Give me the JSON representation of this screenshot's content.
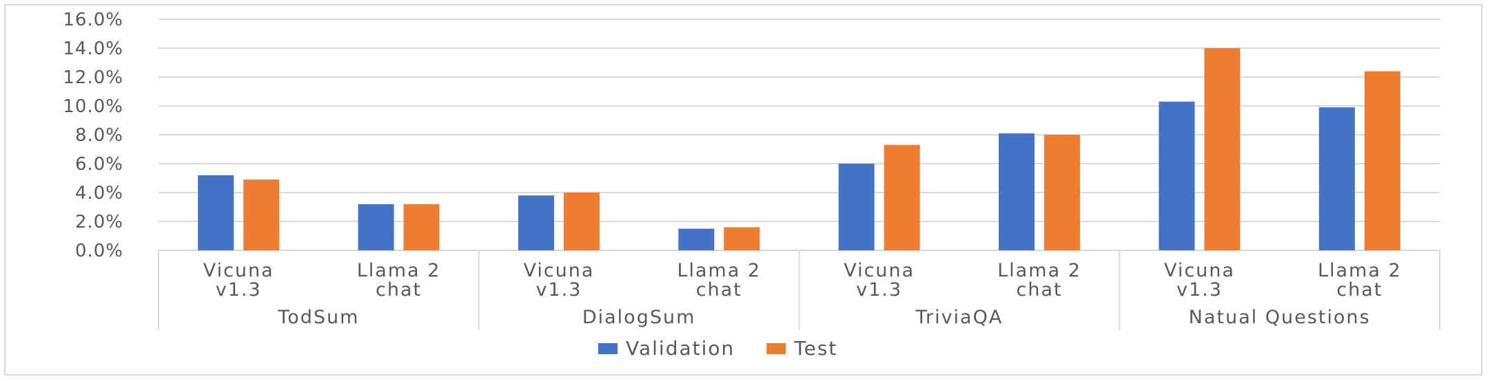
{
  "chart_data": {
    "type": "bar",
    "groups": [
      {
        "name": "TodSum",
        "categories": [
          "Vicuna v1.3",
          "Llama 2 chat"
        ]
      },
      {
        "name": "DialogSum",
        "categories": [
          "Vicuna v1.3",
          "Llama 2 chat"
        ]
      },
      {
        "name": "TriviaQA",
        "categories": [
          "Vicuna v1.3",
          "Llama 2 chat"
        ]
      },
      {
        "name": "Natual Questions",
        "categories": [
          "Vicuna v1.3",
          "Llama 2 chat"
        ]
      }
    ],
    "category_lines": [
      [
        "Vicuna",
        "v1.3"
      ],
      [
        "Llama 2",
        "chat"
      ],
      [
        "Vicuna",
        "v1.3"
      ],
      [
        "Llama 2",
        "chat"
      ],
      [
        "Vicuna",
        "v1.3"
      ],
      [
        "Llama 2",
        "chat"
      ],
      [
        "Vicuna",
        "v1.3"
      ],
      [
        "Llama 2",
        "chat"
      ]
    ],
    "series": [
      {
        "name": "Validation",
        "color": "#4472C4",
        "values": [
          5.2,
          3.2,
          3.8,
          1.5,
          6.0,
          8.1,
          10.3,
          9.9
        ]
      },
      {
        "name": "Test",
        "color": "#ED7D31",
        "values": [
          4.9,
          3.2,
          4.0,
          1.6,
          7.3,
          8.0,
          14.0,
          12.4
        ]
      }
    ],
    "yticks": [
      "0.0%",
      "2.0%",
      "4.0%",
      "6.0%",
      "8.0%",
      "10.0%",
      "12.0%",
      "14.0%",
      "16.0%"
    ],
    "ylim": [
      0,
      16
    ],
    "grid": true,
    "legend_position": "bottom"
  }
}
